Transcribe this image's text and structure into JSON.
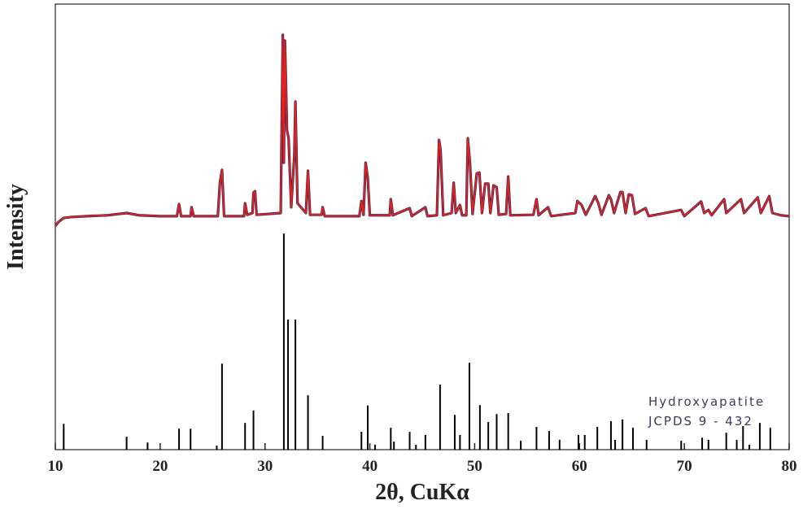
{
  "chart_data": {
    "type": "line",
    "xlabel": "2θ, CuKα",
    "ylabel": "Intensity",
    "xlim": [
      10,
      80
    ],
    "xticks": [
      10,
      20,
      30,
      40,
      50,
      60,
      70,
      80
    ],
    "ylim": [
      0,
      100
    ],
    "series": [
      {
        "type": "line",
        "color": "#e3221f",
        "edge_color": "#3a2a55",
        "x": [
          10.0,
          10.3,
          10.8,
          11.5,
          13,
          15,
          16.8,
          18,
          20,
          21.6,
          21.8,
          22.0,
          22.9,
          23.0,
          23.2,
          25.5,
          25.7,
          25.9,
          26.1,
          28.0,
          28.1,
          28.3,
          28.8,
          28.9,
          29.05,
          29.2,
          31.5,
          31.7,
          31.8,
          31.9,
          32.1,
          32.25,
          32.5,
          32.8,
          32.9,
          33.1,
          33.9,
          34.1,
          34.3,
          35.4,
          35.5,
          35.7,
          39.0,
          39.2,
          39.4,
          39.6,
          39.8,
          40.0,
          41.9,
          42.0,
          42.2,
          43.8,
          44.0,
          45.3,
          45.5,
          46.4,
          46.6,
          46.75,
          47.0,
          47.8,
          48.0,
          48.2,
          48.6,
          48.8,
          49.2,
          49.35,
          49.55,
          49.8,
          50.2,
          50.45,
          50.7,
          51.0,
          51.3,
          51.5,
          51.8,
          52.1,
          52.3,
          53.0,
          53.2,
          53.4,
          55.6,
          55.9,
          56.1,
          57.0,
          57.3,
          59.6,
          59.8,
          60.2,
          60.6,
          61.5,
          61.8,
          62.1,
          62.8,
          63.0,
          63.3,
          63.9,
          64.1,
          64.4,
          64.7,
          65.0,
          65.3,
          66.3,
          66.6,
          69.7,
          70.0,
          71.6,
          71.9,
          72.3,
          72.6,
          73.8,
          74.0,
          75.4,
          75.7,
          77.0,
          77.3,
          78.1,
          78.4,
          79.2,
          80.0
        ],
        "values": [
          50.2,
          51.1,
          52.0,
          52.2,
          52.4,
          52.6,
          53.1,
          52.6,
          52.4,
          52.4,
          55.1,
          52.4,
          52.4,
          54.4,
          52.4,
          52.4,
          59.9,
          62.8,
          52.4,
          52.4,
          55.3,
          52.7,
          53.1,
          57.7,
          58.0,
          52.7,
          53.1,
          93.1,
          64.4,
          91.8,
          71.7,
          69.9,
          54.4,
          66.2,
          78.1,
          55.3,
          53.1,
          62.6,
          52.7,
          52.7,
          54.4,
          52.4,
          52.4,
          55.8,
          52.7,
          64.4,
          61.1,
          52.6,
          52.6,
          56.2,
          52.6,
          54.2,
          52.4,
          54.4,
          52.4,
          52.6,
          69.5,
          67.2,
          52.6,
          53.1,
          59.9,
          53.1,
          54.9,
          52.6,
          52.6,
          69.9,
          64.4,
          52.9,
          62.0,
          62.2,
          53.1,
          59.7,
          59.7,
          53.1,
          59.3,
          58.9,
          52.7,
          52.9,
          61.3,
          52.6,
          52.7,
          56.2,
          52.6,
          54.4,
          52.4,
          53.1,
          55.8,
          54.9,
          52.7,
          56.9,
          55.3,
          52.7,
          57.1,
          56.2,
          53.1,
          57.8,
          57.8,
          53.1,
          57.3,
          57.1,
          52.9,
          54.2,
          52.4,
          53.8,
          52.4,
          55.7,
          53.1,
          53.8,
          52.6,
          56.2,
          53.1,
          56.2,
          53.1,
          56.6,
          53.1,
          56.9,
          53.1,
          52.6,
          52.4
        ]
      },
      {
        "type": "stem",
        "name": "Hydroxyapatite",
        "label": "JCPDS 9 - 432",
        "color": "#000000",
        "x": [
          10.8,
          16.8,
          18.8,
          21.8,
          22.9,
          25.4,
          25.9,
          28.1,
          28.9,
          31.8,
          32.2,
          32.9,
          34.1,
          35.5,
          39.2,
          39.8,
          40.5,
          42.0,
          42.3,
          43.8,
          44.4,
          45.3,
          46.7,
          48.1,
          48.6,
          49.5,
          50.5,
          51.3,
          52.1,
          53.2,
          54.4,
          55.9,
          57.1,
          58.1,
          59.9,
          60.5,
          61.7,
          63.0,
          63.4,
          64.1,
          65.1,
          66.4,
          69.7,
          71.7,
          72.3,
          74.0,
          75.0,
          75.6,
          76.2,
          77.2,
          78.2
        ],
        "values": [
          5.8,
          2.9,
          1.6,
          4.7,
          4.7,
          0.9,
          19.3,
          6.0,
          8.8,
          48.5,
          29.2,
          29.2,
          12.2,
          3.1,
          4.0,
          9.9,
          1.1,
          4.9,
          1.8,
          4.0,
          1.1,
          3.3,
          14.6,
          7.8,
          3.3,
          19.5,
          10.0,
          6.2,
          8.0,
          8.2,
          2.0,
          5.1,
          4.2,
          2.2,
          3.3,
          3.3,
          5.1,
          6.4,
          2.2,
          6.8,
          4.9,
          2.2,
          2.0,
          2.7,
          2.2,
          3.8,
          2.2,
          5.3,
          1.1,
          6.0,
          4.9
        ]
      }
    ]
  }
}
